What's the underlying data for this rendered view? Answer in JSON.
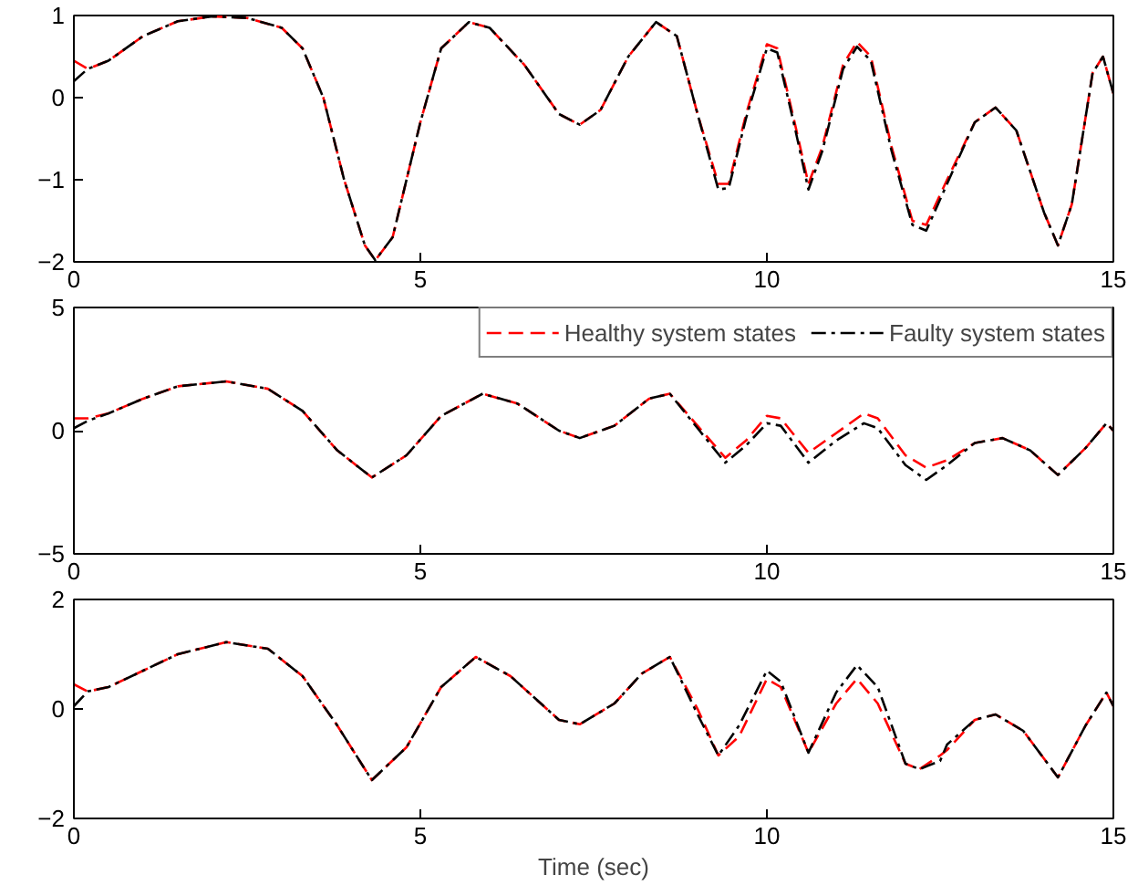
{
  "chart_data": [
    {
      "type": "line",
      "x": [
        0,
        0.2,
        0.5,
        1,
        1.5,
        2,
        2.5,
        3,
        3.3,
        3.6,
        3.9,
        4.2,
        4.35,
        4.6,
        5,
        5.3,
        5.7,
        6,
        6.5,
        7,
        7.3,
        7.6,
        8,
        8.4,
        8.7,
        9,
        9.3,
        9.45,
        9.7,
        10,
        10.15,
        10.4,
        10.6,
        10.8,
        11.1,
        11.3,
        11.5,
        11.8,
        12.1,
        12.3,
        12.6,
        13,
        13.3,
        13.6,
        14,
        14.2,
        14.4,
        14.7,
        14.85,
        15
      ],
      "series": [
        {
          "color": "#ff0000",
          "line_style": "dashed",
          "values": [
            0.45,
            0.35,
            0.45,
            0.75,
            0.93,
            0.99,
            0.97,
            0.85,
            0.6,
            0,
            -1.0,
            -1.8,
            -1.98,
            -1.7,
            -0.3,
            0.6,
            0.92,
            0.85,
            0.4,
            -0.2,
            -0.33,
            -0.15,
            0.5,
            0.92,
            0.75,
            -0.2,
            -1.05,
            -1.05,
            -0.2,
            0.65,
            0.6,
            -0.3,
            -1.05,
            -0.6,
            0.4,
            0.68,
            0.5,
            -0.6,
            -1.5,
            -1.55,
            -1.0,
            -0.3,
            -0.12,
            -0.4,
            -1.4,
            -1.8,
            -1.3,
            0.3,
            0.5,
            0.05
          ]
        },
        {
          "color": "#000000",
          "line_style": "dashdot",
          "values": [
            0.2,
            0.35,
            0.45,
            0.75,
            0.93,
            0.99,
            0.97,
            0.85,
            0.6,
            0,
            -1.0,
            -1.8,
            -1.98,
            -1.7,
            -0.3,
            0.6,
            0.92,
            0.85,
            0.4,
            -0.2,
            -0.33,
            -0.15,
            0.5,
            0.92,
            0.75,
            -0.2,
            -1.12,
            -1.1,
            -0.25,
            0.6,
            0.55,
            -0.35,
            -1.12,
            -0.65,
            0.35,
            0.62,
            0.45,
            -0.65,
            -1.55,
            -1.62,
            -1.05,
            -0.3,
            -0.12,
            -0.4,
            -1.4,
            -1.8,
            -1.3,
            0.3,
            0.5,
            0.05
          ]
        }
      ],
      "xlim": [
        0,
        15
      ],
      "xticks": [
        0,
        5,
        10,
        15
      ],
      "ylim": [
        -2,
        1
      ],
      "yticks": [
        -2,
        -1,
        0,
        1
      ],
      "grid": false,
      "legend": false
    },
    {
      "type": "line",
      "x": [
        0,
        0.2,
        0.5,
        1,
        1.5,
        2.2,
        2.8,
        3.3,
        3.8,
        4.3,
        4.8,
        5.3,
        5.9,
        6.4,
        7,
        7.3,
        7.8,
        8.3,
        8.6,
        9,
        9.4,
        9.7,
        10,
        10.2,
        10.6,
        11,
        11.4,
        11.6,
        12,
        12.3,
        12.6,
        13,
        13.4,
        13.8,
        14.2,
        14.6,
        14.9,
        15
      ],
      "series": [
        {
          "name": "Healthy system states",
          "color": "#ff0000",
          "line_style": "dashed",
          "values": [
            0.5,
            0.5,
            0.7,
            1.3,
            1.8,
            2.0,
            1.7,
            0.8,
            -0.8,
            -1.9,
            -1.0,
            0.6,
            1.5,
            1.1,
            0,
            -0.3,
            0.2,
            1.3,
            1.5,
            0.2,
            -1.1,
            -0.4,
            0.6,
            0.5,
            -0.9,
            -0.1,
            0.7,
            0.5,
            -1.0,
            -1.5,
            -1.2,
            -0.5,
            -0.3,
            -0.8,
            -1.8,
            -0.7,
            0.3,
            0
          ]
        },
        {
          "name": "Faulty system states",
          "color": "#000000",
          "line_style": "dashdot",
          "values": [
            0.1,
            0.4,
            0.7,
            1.3,
            1.8,
            2.0,
            1.7,
            0.8,
            -0.8,
            -1.9,
            -1.0,
            0.6,
            1.5,
            1.1,
            0,
            -0.3,
            0.2,
            1.3,
            1.5,
            0.1,
            -1.3,
            -0.6,
            0.3,
            0.2,
            -1.3,
            -0.4,
            0.3,
            0.1,
            -1.4,
            -2.0,
            -1.4,
            -0.5,
            -0.3,
            -0.8,
            -1.8,
            -0.7,
            0.3,
            0
          ]
        }
      ],
      "xlim": [
        0,
        15
      ],
      "xticks": [
        0,
        5,
        10,
        15
      ],
      "ylim": [
        -5,
        5
      ],
      "yticks": [
        -5,
        0,
        5
      ],
      "grid": false,
      "legend": "top right"
    },
    {
      "type": "line",
      "xlabel": "Time (sec)",
      "x": [
        0,
        0.2,
        0.5,
        1,
        1.5,
        2.2,
        2.8,
        3.3,
        3.8,
        4.3,
        4.8,
        5.3,
        5.8,
        6.3,
        7,
        7.3,
        7.8,
        8.2,
        8.6,
        9,
        9.3,
        9.6,
        10,
        10.2,
        10.6,
        11,
        11.3,
        11.6,
        12,
        12.2,
        12.5,
        12.6,
        13,
        13.3,
        13.7,
        14.2,
        14.6,
        14.9,
        15
      ],
      "series": [
        {
          "color": "#ff0000",
          "line_style": "dashed",
          "values": [
            0.45,
            0.32,
            0.4,
            0.7,
            1.0,
            1.22,
            1.1,
            0.6,
            -0.3,
            -1.3,
            -0.7,
            0.4,
            0.95,
            0.6,
            -0.2,
            -0.28,
            0.1,
            0.65,
            0.95,
            0,
            -0.85,
            -0.5,
            0.55,
            0.4,
            -0.8,
            0.1,
            0.55,
            0.1,
            -1.0,
            -1.1,
            -0.85,
            -0.75,
            -0.2,
            -0.1,
            -0.4,
            -1.25,
            -0.3,
            0.3,
            0.05
          ]
        },
        {
          "color": "#000000",
          "line_style": "dashdot",
          "values": [
            0.05,
            0.32,
            0.4,
            0.7,
            1.0,
            1.22,
            1.1,
            0.6,
            -0.3,
            -1.3,
            -0.7,
            0.4,
            0.95,
            0.6,
            -0.2,
            -0.28,
            0.1,
            0.65,
            0.95,
            -0.1,
            -0.85,
            -0.3,
            0.7,
            0.5,
            -0.8,
            0.3,
            0.8,
            0.4,
            -1.0,
            -1.1,
            -0.95,
            -0.65,
            -0.2,
            -0.1,
            -0.4,
            -1.25,
            -0.3,
            0.3,
            0.05
          ]
        }
      ],
      "xlim": [
        0,
        15
      ],
      "xticks": [
        0,
        5,
        10,
        15
      ],
      "ylim": [
        -2,
        2
      ],
      "yticks": [
        -2,
        0,
        2
      ],
      "grid": false,
      "legend": false
    }
  ]
}
